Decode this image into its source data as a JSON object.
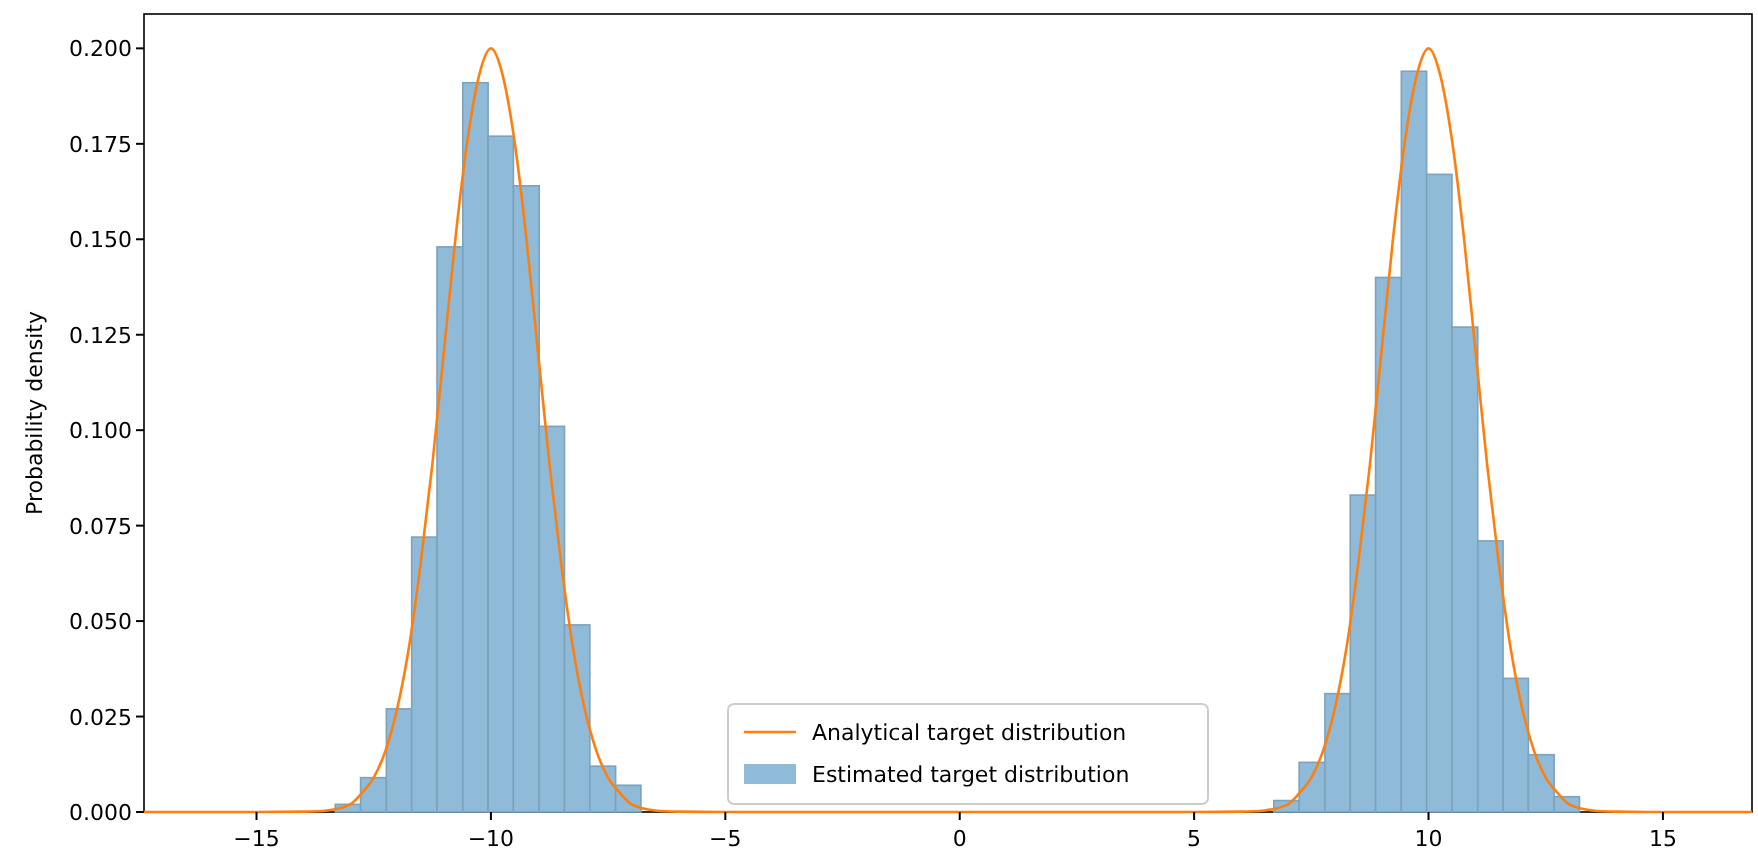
{
  "chart_data": {
    "type": "histogram",
    "ylabel": "Probability density",
    "xlim": [
      -17.4,
      16.9
    ],
    "ylim": [
      0,
      0.209
    ],
    "xticks": [
      {
        "value": -15,
        "label": "−15"
      },
      {
        "value": -10,
        "label": "−10"
      },
      {
        "value": -5,
        "label": "−5"
      },
      0,
      5,
      10,
      15
    ],
    "yticks": [
      {
        "value": 0,
        "label": "0.000"
      },
      {
        "value": 0.025,
        "label": "0.025"
      },
      {
        "value": 0.05,
        "label": "0.050"
      },
      {
        "value": 0.075,
        "label": "0.075"
      },
      {
        "value": 0.1,
        "label": "0.100"
      },
      {
        "value": 0.125,
        "label": "0.125"
      },
      {
        "value": 0.15,
        "label": "0.150"
      },
      {
        "value": 0.175,
        "label": "0.175"
      },
      {
        "value": 0.2,
        "label": "0.200"
      }
    ],
    "grid": false,
    "legend": "bottom",
    "bins": [
      -13.32,
      -12.78,
      -12.23,
      -11.69,
      -11.15,
      -10.6,
      -10.06,
      -9.52,
      -8.97,
      -8.43,
      -7.89,
      -7.34,
      -6.8,
      6.7,
      7.24,
      7.79,
      8.33,
      8.87,
      9.42,
      9.96,
      10.5,
      11.05,
      11.59,
      12.13,
      12.68,
      13.22
    ],
    "series": [
      {
        "type": "line",
        "name": "Analytical target distribution",
        "color": "#ff7f0e",
        "x": [
          -17.4,
          -15,
          -14,
          -13.5,
          -13,
          -12.75,
          -12.5,
          -12.25,
          -12,
          -11.75,
          -11.5,
          -11.25,
          -11,
          -10.75,
          -10.5,
          -10.25,
          -10,
          -9.75,
          -9.5,
          -9.25,
          -9,
          -8.75,
          -8.5,
          -8.25,
          -8,
          -7.75,
          -7.5,
          -7.25,
          -7,
          -6.5,
          -6,
          -5,
          0,
          5,
          6,
          6.5,
          7,
          7.25,
          7.5,
          7.75,
          8,
          8.25,
          8.5,
          8.75,
          9,
          9.25,
          9.5,
          9.75,
          10,
          10.25,
          10.5,
          10.75,
          11,
          11.25,
          11.5,
          11.75,
          12,
          12.25,
          12.5,
          12.75,
          13,
          13.5,
          14,
          15,
          16.9
        ],
        "values": [
          0,
          0,
          0.0001,
          0.0004,
          0.002,
          0.005,
          0.009,
          0.016,
          0.027,
          0.043,
          0.065,
          0.091,
          0.121,
          0.151,
          0.176,
          0.193,
          0.2,
          0.193,
          0.176,
          0.151,
          0.121,
          0.091,
          0.065,
          0.043,
          0.027,
          0.016,
          0.009,
          0.005,
          0.002,
          0.0004,
          0.0001,
          0,
          0,
          0,
          0.0001,
          0.0004,
          0.002,
          0.005,
          0.009,
          0.016,
          0.027,
          0.043,
          0.065,
          0.091,
          0.121,
          0.151,
          0.176,
          0.193,
          0.2,
          0.193,
          0.176,
          0.151,
          0.121,
          0.091,
          0.065,
          0.043,
          0.027,
          0.016,
          0.009,
          0.005,
          0.002,
          0.0004,
          0.0001,
          0,
          0
        ]
      },
      {
        "name": "Estimated target distribution",
        "color": "#8fbbd9",
        "values": [
          0.002,
          0.009,
          0.027,
          0.072,
          0.148,
          0.191,
          0.177,
          0.164,
          0.101,
          0.049,
          0.012,
          0.007,
          0,
          0.003,
          0.013,
          0.031,
          0.083,
          0.14,
          0.194,
          0.167,
          0.127,
          0.071,
          0.035,
          0.015,
          0.004
        ]
      }
    ]
  }
}
